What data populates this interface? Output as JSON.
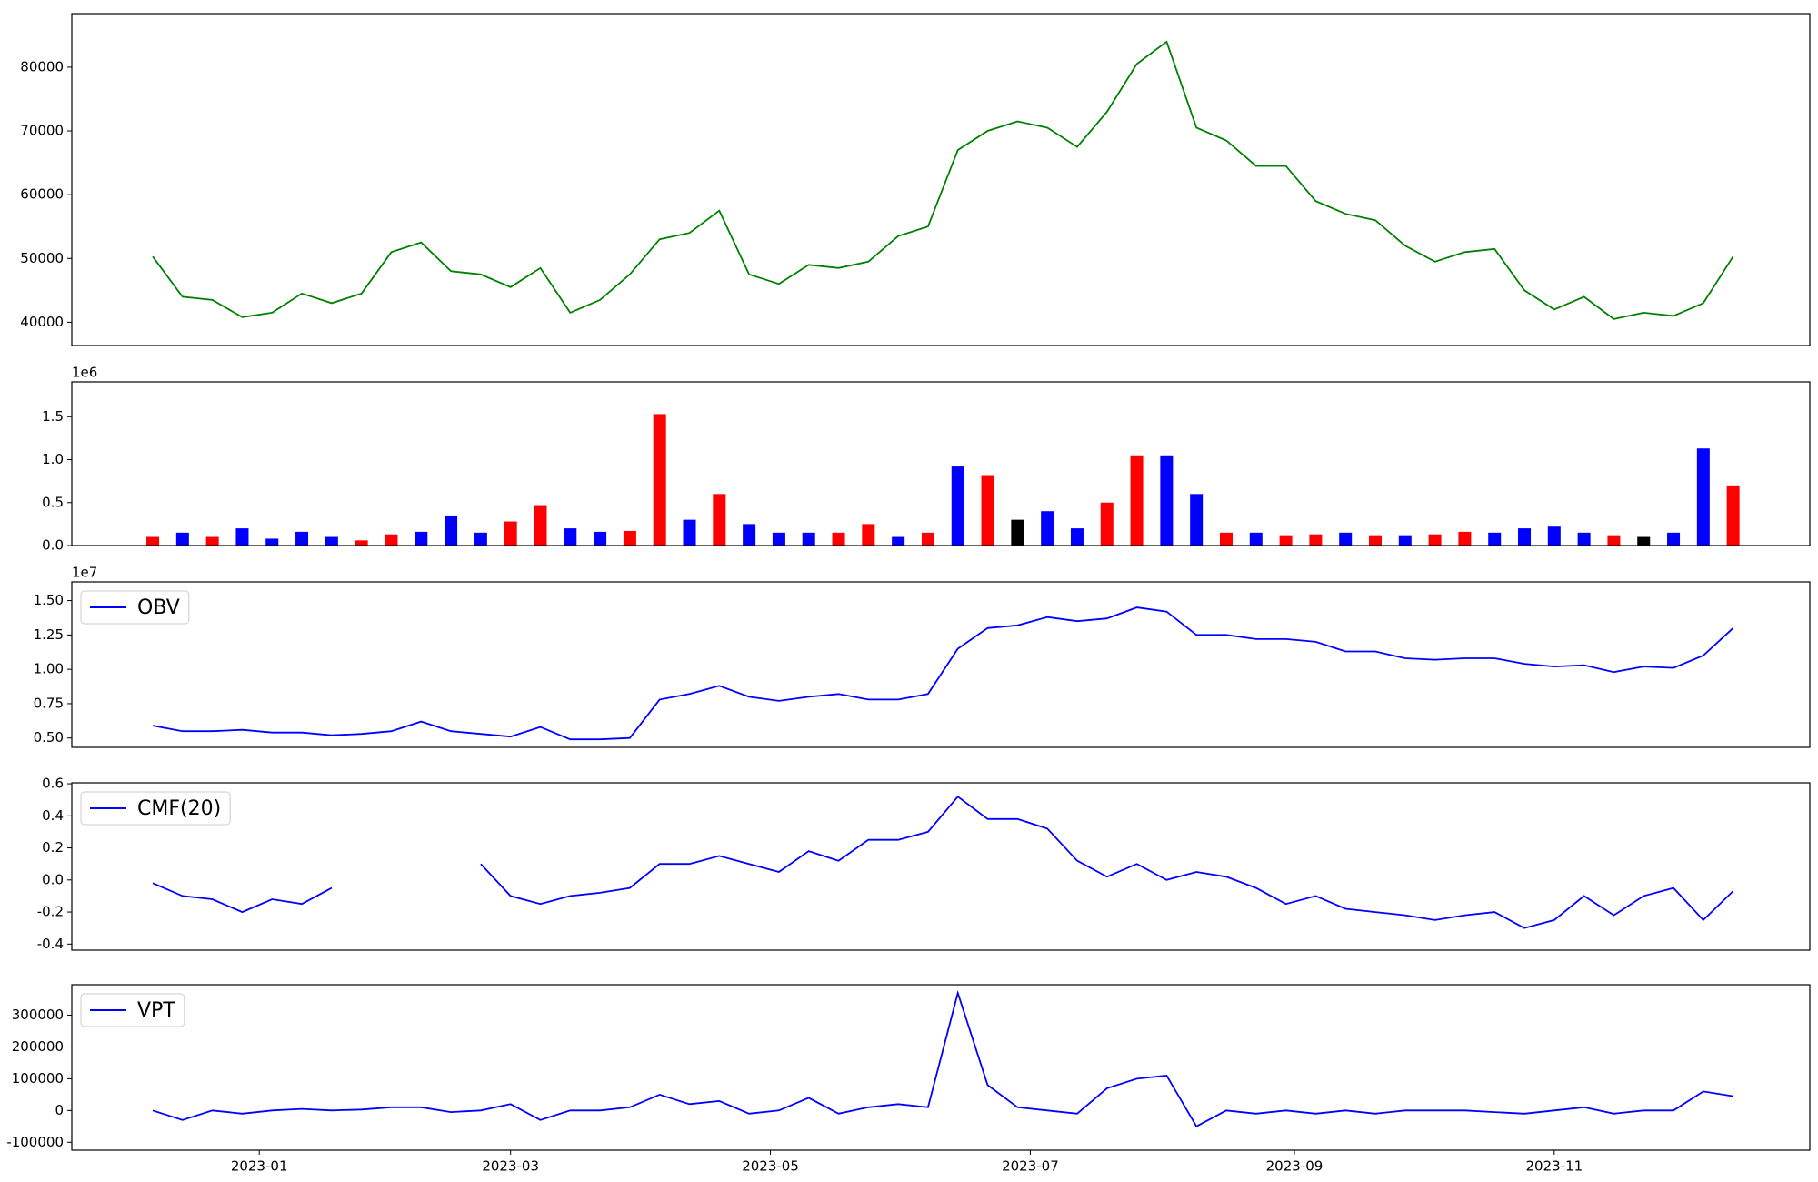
{
  "chart_data": {
    "type": "multi-panel",
    "x": [
      "2022-12-07",
      "2022-12-14",
      "2022-12-21",
      "2022-12-28",
      "2023-01-04",
      "2023-01-11",
      "2023-01-18",
      "2023-01-25",
      "2023-02-01",
      "2023-02-08",
      "2023-02-15",
      "2023-02-22",
      "2023-03-01",
      "2023-03-08",
      "2023-03-15",
      "2023-03-22",
      "2023-03-29",
      "2023-04-05",
      "2023-04-12",
      "2023-04-19",
      "2023-04-26",
      "2023-05-03",
      "2023-05-10",
      "2023-05-17",
      "2023-05-24",
      "2023-05-31",
      "2023-06-07",
      "2023-06-14",
      "2023-06-21",
      "2023-06-28",
      "2023-07-05",
      "2023-07-12",
      "2023-07-19",
      "2023-07-26",
      "2023-08-02",
      "2023-08-09",
      "2023-08-16",
      "2023-08-23",
      "2023-08-30",
      "2023-09-06",
      "2023-09-13",
      "2023-09-20",
      "2023-09-27",
      "2023-10-04",
      "2023-10-11",
      "2023-10-18",
      "2023-10-25",
      "2023-11-01",
      "2023-11-08",
      "2023-11-15",
      "2023-11-22",
      "2023-11-29",
      "2023-12-06",
      "2023-12-13"
    ],
    "xlim": [
      "2022-11-18",
      "2023-12-31"
    ],
    "xticks": [
      {
        "value": "2023-01-01",
        "label": "2023-01"
      },
      {
        "value": "2023-03-01",
        "label": "2023-03"
      },
      {
        "value": "2023-05-01",
        "label": "2023-05"
      },
      {
        "value": "2023-07-01",
        "label": "2023-07"
      },
      {
        "value": "2023-09-01",
        "label": "2023-09"
      },
      {
        "value": "2023-11-01",
        "label": "2023-11"
      }
    ],
    "panels": [
      {
        "type": "line",
        "ylim": [
          36350,
          88400
        ],
        "yticks": [
          40000,
          50000,
          60000,
          70000,
          80000
        ],
        "series": [
          {
            "color": "#008000",
            "values": [
              50300,
              44000,
              43500,
              40800,
              41500,
              44500,
              43000,
              44500,
              51000,
              52500,
              48000,
              47500,
              45500,
              48500,
              41500,
              43500,
              47500,
              53000,
              54000,
              57500,
              47500,
              46000,
              49000,
              48500,
              49500,
              53500,
              55000,
              67000,
              70000,
              71500,
              70500,
              67500,
              73000,
              80500,
              84000,
              70500,
              68500,
              64500,
              64500,
              59000,
              57000,
              56000,
              52000,
              49500,
              51000,
              51500,
              45000,
              42000,
              44000,
              40500,
              41500,
              41000,
              43000,
              50300
            ]
          }
        ]
      },
      {
        "type": "bar",
        "ylim": [
          0,
          1905000
        ],
        "offset_label": "1e6",
        "yticks": [
          {
            "value": 0,
            "label": "0.0"
          },
          {
            "value": 500000,
            "label": "0.5"
          },
          {
            "value": 1000000,
            "label": "1.0"
          },
          {
            "value": 1500000,
            "label": "1.5"
          }
        ],
        "values": [
          100000,
          150000,
          100000,
          200000,
          80000,
          160000,
          100000,
          60000,
          130000,
          160000,
          350000,
          150000,
          280000,
          470000,
          200000,
          160000,
          170000,
          1530000,
          300000,
          600000,
          250000,
          150000,
          150000,
          150000,
          250000,
          100000,
          150000,
          920000,
          820000,
          300000,
          400000,
          200000,
          500000,
          1050000,
          1050000,
          600000,
          150000,
          150000,
          120000,
          130000,
          150000,
          120000,
          120000,
          130000,
          160000,
          150000,
          200000,
          220000,
          150000,
          120000,
          100000,
          150000,
          1130000,
          700000
        ],
        "colors": [
          "red",
          "blue",
          "red",
          "blue",
          "blue",
          "blue",
          "blue",
          "red",
          "red",
          "blue",
          "blue",
          "blue",
          "red",
          "red",
          "blue",
          "blue",
          "red",
          "red",
          "blue",
          "red",
          "blue",
          "blue",
          "blue",
          "red",
          "red",
          "blue",
          "red",
          "blue",
          "red",
          "black",
          "blue",
          "blue",
          "red",
          "red",
          "blue",
          "blue",
          "red",
          "blue",
          "red",
          "red",
          "blue",
          "red",
          "blue",
          "red",
          "red",
          "blue",
          "blue",
          "blue",
          "blue",
          "red",
          "black",
          "blue",
          "blue",
          "red"
        ]
      },
      {
        "type": "line",
        "ylim": [
          4320000,
          16360000
        ],
        "offset_label": "1e7",
        "legend": "upper left",
        "yticks": [
          {
            "value": 5000000,
            "label": "0.50"
          },
          {
            "value": 7500000,
            "label": "0.75"
          },
          {
            "value": 10000000,
            "label": "1.00"
          },
          {
            "value": 12500000,
            "label": "1.25"
          },
          {
            "value": 15000000,
            "label": "1.50"
          }
        ],
        "series": [
          {
            "name": "OBV",
            "color": "#0000ff",
            "values": [
              5900000,
              5500000,
              5500000,
              5600000,
              5400000,
              5400000,
              5200000,
              5300000,
              5500000,
              6200000,
              5500000,
              5300000,
              5100000,
              5800000,
              4900000,
              4900000,
              5000000,
              7800000,
              8200000,
              8800000,
              8000000,
              7700000,
              8000000,
              8200000,
              7800000,
              7800000,
              8200000,
              11500000,
              13000000,
              13200000,
              13800000,
              13500000,
              13700000,
              14500000,
              14200000,
              12500000,
              12500000,
              12200000,
              12200000,
              12000000,
              11300000,
              11300000,
              10800000,
              10700000,
              10800000,
              10800000,
              10400000,
              10200000,
              10300000,
              9800000,
              10200000,
              10100000,
              11000000,
              13000000
            ]
          }
        ]
      },
      {
        "type": "line",
        "ylim": [
          -0.438,
          0.606
        ],
        "legend": "upper left",
        "yticks": [
          -0.4,
          -0.2,
          {
            "value": 0,
            "label": "0.0"
          },
          0.2,
          0.4,
          0.6
        ],
        "series": [
          {
            "name": "CMF(20)",
            "color": "#0000ff",
            "values": [
              -0.02,
              -0.1,
              -0.12,
              -0.2,
              -0.12,
              -0.15,
              -0.05,
              null,
              null,
              null,
              null,
              0.1,
              -0.1,
              -0.15,
              -0.1,
              -0.08,
              -0.05,
              0.1,
              0.1,
              0.15,
              0.1,
              0.05,
              0.18,
              0.12,
              0.25,
              0.25,
              0.3,
              0.52,
              0.38,
              0.38,
              0.32,
              0.12,
              0.02,
              0.1,
              0.0,
              0.05,
              0.02,
              -0.05,
              -0.15,
              -0.1,
              -0.18,
              -0.2,
              -0.22,
              -0.25,
              -0.22,
              -0.2,
              -0.3,
              -0.25,
              -0.1,
              -0.22,
              -0.1,
              -0.05,
              -0.25,
              -0.07
            ]
          }
        ]
      },
      {
        "type": "line",
        "ylim": [
          -125000,
          396000
        ],
        "legend": "upper left",
        "yticks": [
          -100000,
          0,
          100000,
          200000,
          300000
        ],
        "series": [
          {
            "name": "VPT",
            "color": "#0000ff",
            "values": [
              0,
              -30000,
              0,
              -10000,
              0,
              5000,
              0,
              3000,
              10000,
              10000,
              -5000,
              0,
              20000,
              -30000,
              0,
              0,
              10000,
              50000,
              20000,
              30000,
              -10000,
              0,
              40000,
              -10000,
              10000,
              20000,
              10000,
              370000,
              80000,
              10000,
              0,
              -10000,
              70000,
              100000,
              110000,
              -50000,
              0,
              -10000,
              0,
              -10000,
              0,
              -10000,
              0,
              0,
              0,
              -5000,
              -10000,
              0,
              10000,
              -10000,
              0,
              0,
              60000,
              45000
            ]
          }
        ]
      }
    ]
  }
}
